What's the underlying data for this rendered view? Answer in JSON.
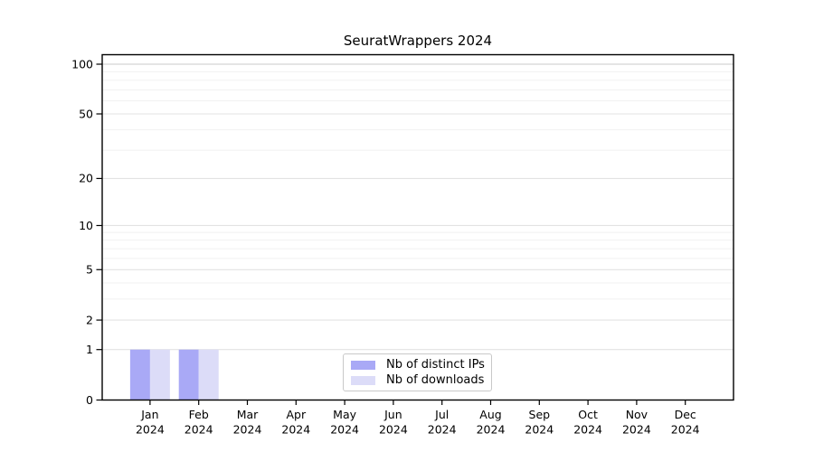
{
  "chart_data": {
    "type": "bar",
    "title": "SeuratWrappers 2024",
    "x_categories": [
      "Jan 2024",
      "Feb 2024",
      "Mar 2024",
      "Apr 2024",
      "May 2024",
      "Jun 2024",
      "Jul 2024",
      "Aug 2024",
      "Sep 2024",
      "Oct 2024",
      "Nov 2024",
      "Dec 2024"
    ],
    "series": [
      {
        "name": "Nb of distinct IPs",
        "color": "#a9a9f6",
        "values": [
          1,
          1,
          0,
          0,
          0,
          0,
          0,
          0,
          0,
          0,
          0,
          0
        ]
      },
      {
        "name": "Nb of downloads",
        "color": "#dcdcf8",
        "values": [
          1,
          1,
          0,
          0,
          0,
          0,
          0,
          0,
          0,
          0,
          0,
          0
        ]
      }
    ],
    "y_axis": {
      "scale": "log1p",
      "tick_values": [
        0,
        1,
        2,
        5,
        10,
        20,
        50,
        100
      ],
      "minor_gridline_values": [
        3,
        4,
        6,
        7,
        8,
        9,
        30,
        40,
        60,
        70,
        80,
        90
      ],
      "range": [
        0,
        115
      ]
    },
    "grid": {
      "major_color": "#e3e3e3",
      "minor_color": "#f1f1f1",
      "hundred_line_color": "#c8c8c8"
    },
    "legend": {
      "position": "lower-center"
    },
    "frame_color": "#000000",
    "background_color": "#ffffff"
  }
}
